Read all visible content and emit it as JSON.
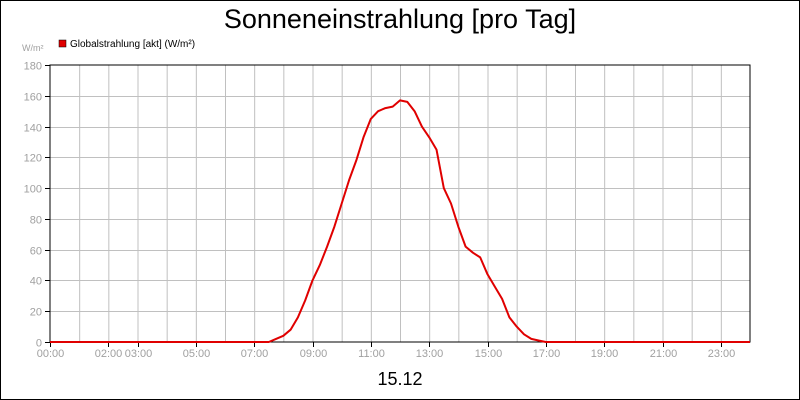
{
  "chart_data": {
    "type": "line",
    "title": "Sonneneinstrahlung [pro Tag]",
    "ylabel": "W/m²",
    "xlabel": "15.12",
    "ylim": [
      0,
      180
    ],
    "xlim": [
      0,
      24
    ],
    "grid": true,
    "legend_position": "top-left",
    "y_ticks": [
      "0",
      "20",
      "40",
      "60",
      "80",
      "100",
      "120",
      "140",
      "160",
      "180"
    ],
    "x_ticks": [
      {
        "value": 0,
        "label": "00:00"
      },
      {
        "value": 2,
        "label": "02:00"
      },
      {
        "value": 3,
        "label": "03:00"
      },
      {
        "value": 5,
        "label": "05:00"
      },
      {
        "value": 7,
        "label": "07:00"
      },
      {
        "value": 9,
        "label": "09:00"
      },
      {
        "value": 11,
        "label": "11:00"
      },
      {
        "value": 13,
        "label": "13:00"
      },
      {
        "value": 15,
        "label": "15:00"
      },
      {
        "value": 17,
        "label": "17:00"
      },
      {
        "value": 19,
        "label": "19:00"
      },
      {
        "value": 21,
        "label": "21:00"
      },
      {
        "value": 23,
        "label": "23:00"
      }
    ],
    "series": [
      {
        "name": "Globalstrahlung [akt] (W/m²)",
        "color": "#e00000",
        "x": [
          0,
          7.5,
          7.75,
          8.0,
          8.25,
          8.5,
          8.75,
          9.0,
          9.25,
          9.5,
          9.75,
          10.0,
          10.25,
          10.5,
          10.75,
          11.0,
          11.25,
          11.5,
          11.75,
          12.0,
          12.25,
          12.5,
          12.75,
          13.0,
          13.25,
          13.5,
          13.75,
          14.0,
          14.25,
          14.5,
          14.75,
          15.0,
          15.25,
          15.5,
          15.75,
          16.0,
          16.25,
          16.5,
          16.75,
          17.0,
          24
        ],
        "y": [
          0,
          0,
          2,
          4,
          8,
          16,
          27,
          40,
          50,
          62,
          75,
          90,
          105,
          118,
          133,
          145,
          150,
          152,
          153,
          157,
          156,
          150,
          140,
          133,
          125,
          100,
          90,
          75,
          62,
          58,
          55,
          44,
          36,
          28,
          16,
          10,
          5,
          2,
          1,
          0,
          0
        ]
      }
    ]
  }
}
